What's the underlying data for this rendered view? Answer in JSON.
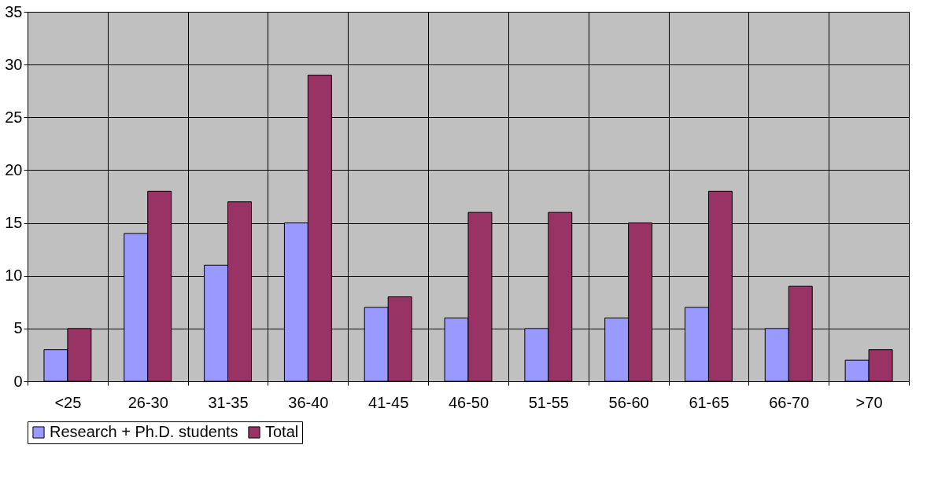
{
  "chart_data": {
    "type": "bar",
    "categories": [
      "<25",
      "26-30",
      "31-35",
      "36-40",
      "41-45",
      "46-50",
      "51-55",
      "56-60",
      "61-65",
      "66-70",
      ">70"
    ],
    "series": [
      {
        "name": "Research + Ph.D. students",
        "color": "#9999ff",
        "values": [
          3,
          14,
          11,
          15,
          7,
          6,
          5,
          6,
          7,
          5,
          2
        ]
      },
      {
        "name": "Total",
        "color": "#993366",
        "values": [
          5,
          18,
          17,
          29,
          8,
          16,
          16,
          15,
          18,
          9,
          3
        ]
      }
    ],
    "ylim": [
      0,
      35
    ],
    "yticks": [
      0,
      5,
      10,
      15,
      20,
      25,
      30,
      35
    ],
    "grid": true,
    "legend": "bottom"
  }
}
